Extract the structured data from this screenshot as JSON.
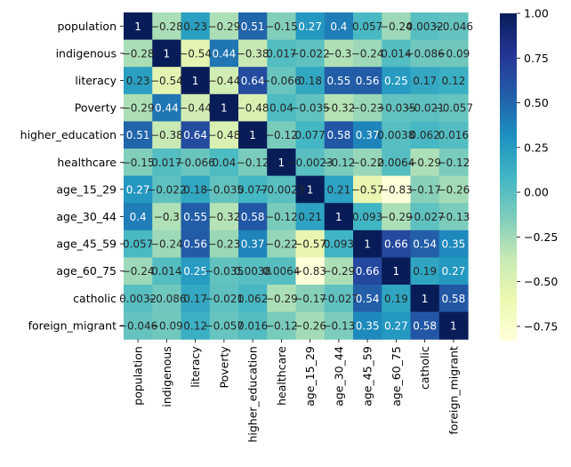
{
  "chart_data": {
    "type": "heatmap",
    "title": "",
    "xlabel": "",
    "ylabel": "",
    "rows": [
      "population",
      "indigenous",
      "literacy",
      "Poverty",
      "higher_education",
      "healthcare",
      "age_15_29",
      "age_30_44",
      "age_45_59",
      "age_60_75",
      "catholic",
      "foreign_migrant"
    ],
    "columns": [
      "population",
      "indigenous",
      "literacy",
      "Poverty",
      "higher_education",
      "healthcare",
      "age_15_29",
      "age_30_44",
      "age_45_59",
      "age_60_75",
      "catholic",
      "foreign_migrant"
    ],
    "values": [
      [
        1,
        -0.28,
        0.23,
        -0.29,
        0.51,
        -0.15,
        0.27,
        0.4,
        0.057,
        -0.24,
        0.0032,
        -0.046
      ],
      [
        -0.28,
        1,
        -0.54,
        0.44,
        -0.38,
        0.017,
        -0.022,
        -0.3,
        -0.24,
        0.014,
        -0.086,
        -0.09
      ],
      [
        0.23,
        -0.54,
        1,
        -0.44,
        0.64,
        -0.066,
        0.18,
        0.55,
        0.56,
        0.25,
        0.17,
        0.12
      ],
      [
        -0.29,
        0.44,
        -0.44,
        1,
        -0.48,
        0.04,
        -0.035,
        -0.32,
        -0.23,
        -0.035,
        -0.021,
        -0.057
      ],
      [
        0.51,
        -0.38,
        0.64,
        -0.48,
        1,
        -0.12,
        0.077,
        0.58,
        0.37,
        0.0038,
        0.062,
        0.016
      ],
      [
        -0.15,
        0.017,
        -0.066,
        0.04,
        -0.12,
        1,
        -0.0023,
        -0.12,
        -0.22,
        0.0064,
        -0.29,
        -0.12
      ],
      [
        0.27,
        -0.022,
        0.18,
        -0.035,
        0.077,
        -0.0023,
        1,
        0.21,
        -0.57,
        -0.83,
        -0.17,
        -0.26
      ],
      [
        0.4,
        -0.3,
        0.55,
        -0.32,
        0.58,
        -0.12,
        0.21,
        1,
        0.093,
        -0.29,
        -0.027,
        -0.13
      ],
      [
        0.057,
        -0.24,
        0.56,
        -0.23,
        0.37,
        -0.22,
        -0.57,
        0.093,
        1,
        0.66,
        0.54,
        0.35
      ],
      [
        -0.24,
        0.014,
        0.25,
        -0.035,
        0.0038,
        0.0064,
        -0.83,
        -0.29,
        0.66,
        1,
        0.19,
        0.27
      ],
      [
        0.0032,
        -0.086,
        0.17,
        -0.021,
        0.062,
        -0.29,
        -0.17,
        -0.027,
        0.54,
        0.19,
        1,
        0.58
      ],
      [
        -0.046,
        -0.09,
        0.12,
        -0.057,
        0.016,
        -0.12,
        -0.26,
        -0.13,
        0.35,
        0.27,
        0.58,
        1
      ]
    ],
    "annotations": [
      [
        "1",
        "-0.28",
        "0.23",
        "-0.29",
        "0.51",
        "-0.15",
        "0.27",
        "0.4",
        "0.057",
        "-0.24",
        "0.0032",
        "-0.046"
      ],
      [
        "-0.28",
        "1",
        "-0.54",
        "0.44",
        "-0.38",
        "0.017",
        "-0.022",
        "-0.3",
        "-0.24",
        "0.014",
        "-0.086",
        "-0.09"
      ],
      [
        "0.23",
        "-0.54",
        "1",
        "-0.44",
        "0.64",
        "-0.066",
        "0.18",
        "0.55",
        "0.56",
        "0.25",
        "0.17",
        "0.12"
      ],
      [
        "-0.29",
        "0.44",
        "-0.44",
        "1",
        "-0.48",
        "0.04",
        "-0.035",
        "-0.32",
        "-0.23",
        "-0.035",
        "-0.021",
        "-0.057"
      ],
      [
        "0.51",
        "-0.38",
        "0.64",
        "-0.48",
        "1",
        "-0.12",
        "0.077",
        "0.58",
        "0.37",
        "0.0038",
        "0.062",
        "0.016"
      ],
      [
        "-0.15",
        "0.017",
        "-0.066",
        "0.04",
        "-0.12",
        "1",
        "-0.0023",
        "-0.12",
        "-0.22",
        "0.0064",
        "-0.29",
        "-0.12"
      ],
      [
        "0.27",
        "-0.022",
        "0.18",
        "-0.035",
        "0.077",
        "-0.0023",
        "1",
        "0.21",
        "-0.57",
        "-0.83",
        "-0.17",
        "-0.26"
      ],
      [
        "0.4",
        "-0.3",
        "0.55",
        "-0.32",
        "0.58",
        "-0.12",
        "0.21",
        "1",
        "0.093",
        "-0.29",
        "-0.027",
        "-0.13"
      ],
      [
        "0.057",
        "-0.24",
        "0.56",
        "-0.23",
        "0.37",
        "-0.22",
        "-0.57",
        "0.093",
        "1",
        "0.66",
        "0.54",
        "0.35"
      ],
      [
        "-0.24",
        "0.014",
        "0.25",
        "-0.035",
        "0.0038",
        "0.0064",
        "-0.83",
        "-0.29",
        "0.66",
        "1",
        "0.19",
        "0.27"
      ],
      [
        "0.0032",
        "-0.086",
        "0.17",
        "-0.021",
        "0.062",
        "-0.29",
        "-0.17",
        "-0.027",
        "0.54",
        "0.19",
        "1",
        "0.58"
      ],
      [
        "-0.046",
        "-0.09",
        "0.12",
        "-0.057",
        "0.016",
        "-0.12",
        "-0.26",
        "-0.13",
        "0.35",
        "0.27",
        "0.58",
        "1"
      ]
    ],
    "colormap": "YlGnBu",
    "colormap_stops": [
      "#ffffd9",
      "#edf8b1",
      "#c7e9b4",
      "#7fcdbb",
      "#41b6c4",
      "#1d91c0",
      "#225ea8",
      "#253494",
      "#081d58"
    ],
    "vmin": -0.83,
    "vmax": 1,
    "colorbar_ticks": [
      1.0,
      0.75,
      0.5,
      0.25,
      0.0,
      -0.25,
      -0.5,
      -0.75
    ],
    "colorbar_tick_labels": [
      "1.00",
      "0.75",
      "0.50",
      "0.25",
      "0.00",
      "−0.25",
      "−0.50",
      "−0.75"
    ],
    "grid": false,
    "legend": "colorbar-right"
  }
}
